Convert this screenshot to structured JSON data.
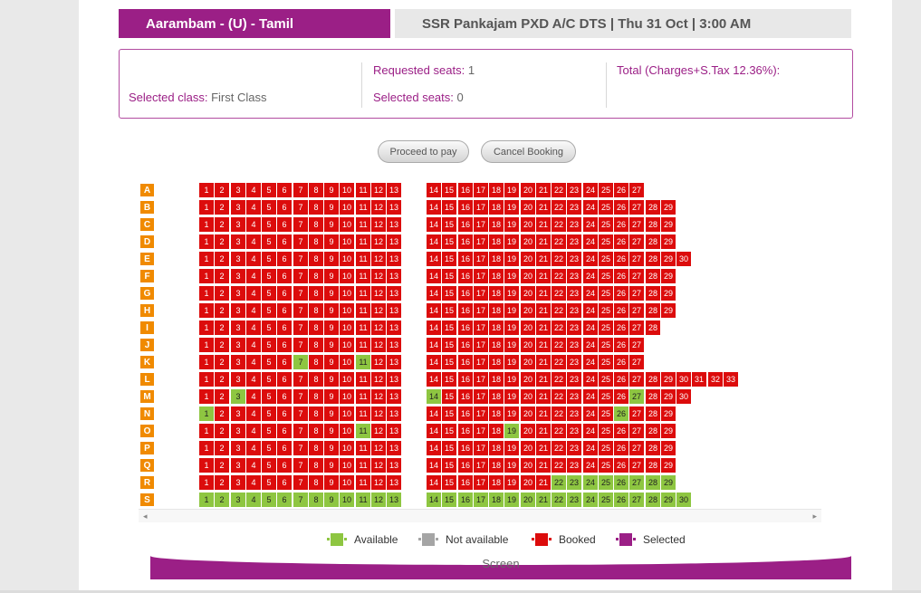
{
  "header": {
    "movie_title": "Aarambam - (U) - Tamil",
    "show_info": "SSR Pankajam PXD A/C DTS | Thu 31 Oct | 3:00 AM"
  },
  "summary": {
    "selected_class_label": "Selected class:",
    "selected_class_value": "First Class",
    "requested_seats_label": "Requested seats:",
    "requested_seats_value": "1",
    "selected_seats_label": "Selected seats:",
    "selected_seats_value": "0",
    "total_label": "Total (Charges+S.Tax 12.36%):"
  },
  "buttons": {
    "proceed": "Proceed to pay",
    "cancel": "Cancel Booking"
  },
  "seat_map": {
    "rows": [
      {
        "label": "A",
        "count": 27,
        "available": []
      },
      {
        "label": "B",
        "count": 29,
        "available": []
      },
      {
        "label": "C",
        "count": 29,
        "available": []
      },
      {
        "label": "D",
        "count": 29,
        "available": []
      },
      {
        "label": "E",
        "count": 30,
        "available": []
      },
      {
        "label": "F",
        "count": 29,
        "available": []
      },
      {
        "label": "G",
        "count": 29,
        "available": []
      },
      {
        "label": "H",
        "count": 29,
        "available": []
      },
      {
        "label": "I",
        "count": 28,
        "available": []
      },
      {
        "label": "J",
        "count": 27,
        "available": []
      },
      {
        "label": "K",
        "count": 27,
        "available": [
          7,
          11
        ]
      },
      {
        "label": "L",
        "count": 33,
        "available": []
      },
      {
        "label": "M",
        "count": 30,
        "available": [
          3,
          14,
          27
        ]
      },
      {
        "label": "N",
        "count": 29,
        "available": [
          1,
          26
        ]
      },
      {
        "label": "O",
        "count": 29,
        "available": [
          11,
          19
        ]
      },
      {
        "label": "P",
        "count": 29,
        "available": []
      },
      {
        "label": "Q",
        "count": 29,
        "available": []
      },
      {
        "label": "R",
        "count": 29,
        "available": [
          22,
          23,
          24,
          25,
          26,
          27,
          28,
          29
        ]
      },
      {
        "label": "S",
        "count": 30,
        "available": [
          1,
          2,
          3,
          4,
          5,
          6,
          7,
          8,
          9,
          10,
          11,
          12,
          13,
          14,
          15,
          16,
          17,
          18,
          19,
          20,
          21,
          22,
          23,
          24,
          25,
          26,
          27,
          28,
          29,
          30
        ]
      }
    ]
  },
  "legend": {
    "available": "Available",
    "not_available": "Not available",
    "booked": "Booked",
    "selected": "Selected"
  },
  "legend_colors": {
    "available": "#8ec641",
    "not_available": "#a5a5a5",
    "booked": "#dc0c0c",
    "selected": "#9b1f86"
  },
  "screen_label": "Screen",
  "icons": {
    "scroll_left": "◂",
    "scroll_right": "▸"
  }
}
